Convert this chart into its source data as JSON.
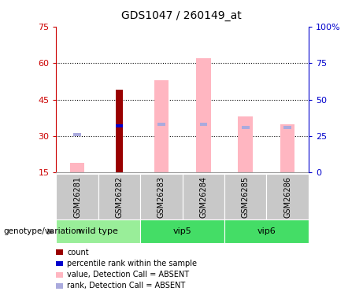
{
  "title": "GDS1047 / 260149_at",
  "samples": [
    "GSM26281",
    "GSM26282",
    "GSM26283",
    "GSM26284",
    "GSM26285",
    "GSM26286"
  ],
  "ylim_left": [
    15,
    75
  ],
  "yticks_left": [
    15,
    30,
    45,
    60,
    75
  ],
  "yticks_right": [
    0,
    25,
    50,
    75,
    100
  ],
  "ylim_right": [
    0,
    100
  ],
  "count_bars": {
    "GSM26281": null,
    "GSM26282": 49,
    "GSM26283": null,
    "GSM26284": null,
    "GSM26285": null,
    "GSM26286": null
  },
  "count_color": "#990000",
  "value_absent_bars": {
    "GSM26281": 19,
    "GSM26282": null,
    "GSM26283": 53,
    "GSM26284": 62,
    "GSM26285": 38,
    "GSM26286": 35
  },
  "value_absent_color": "#FFB6C1",
  "rank_absent_bars": {
    "GSM26281": 26,
    "GSM26282": 32,
    "GSM26283": 33,
    "GSM26284": 33,
    "GSM26285": 31,
    "GSM26286": 31
  },
  "rank_absent_color": "#AAAADD",
  "percentile_rank_bars": {
    "GSM26281": null,
    "GSM26282": 32,
    "GSM26283": null,
    "GSM26284": null,
    "GSM26285": null,
    "GSM26286": null
  },
  "percentile_rank_color": "#0000CC",
  "tick_color_left": "#CC0000",
  "tick_color_right": "#0000CC",
  "legend_items": [
    {
      "color": "#990000",
      "label": "count"
    },
    {
      "color": "#0000CC",
      "label": "percentile rank within the sample"
    },
    {
      "color": "#FFB6C1",
      "label": "value, Detection Call = ABSENT"
    },
    {
      "color": "#AAAADD",
      "label": "rank, Detection Call = ABSENT"
    }
  ],
  "sample_area_color": "#C8C8C8",
  "groups_info": [
    {
      "name": "wild type",
      "indices": [
        0,
        1
      ],
      "color": "#99EE99"
    },
    {
      "name": "vip5",
      "indices": [
        2,
        3
      ],
      "color": "#44DD66"
    },
    {
      "name": "vip6",
      "indices": [
        4,
        5
      ],
      "color": "#44DD66"
    }
  ],
  "genotype_label": "genotype/variation",
  "dotted_lines": [
    30,
    45,
    60
  ]
}
